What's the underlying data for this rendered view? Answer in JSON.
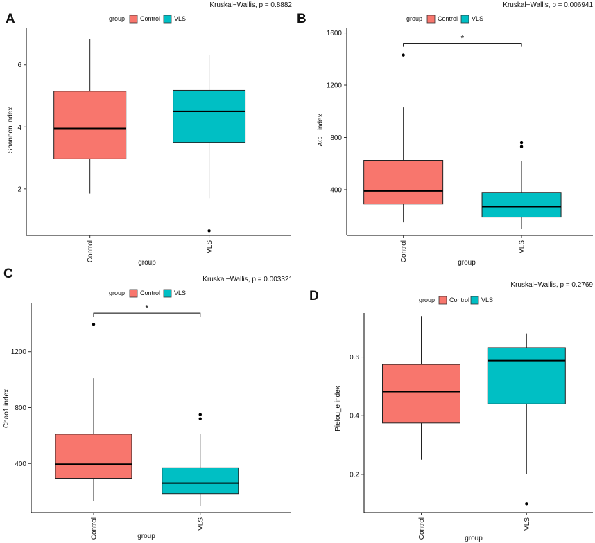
{
  "chart_data": [
    {
      "panel": "A",
      "type": "box",
      "stat_label": "Kruskal−Wallis, p = 0.8882",
      "legend": {
        "title": "group",
        "entries": [
          "Control",
          "VLS"
        ]
      },
      "xlabel": "group",
      "ylabel": "Shannon index",
      "ylim": [
        0.5,
        7.2
      ],
      "yticks": [
        2,
        4,
        6
      ],
      "categories": [
        "Control",
        "VLS"
      ],
      "boxes": [
        {
          "group": "Control",
          "min": 1.85,
          "q1": 2.97,
          "median": 3.95,
          "q3": 5.15,
          "max": 6.82,
          "outliers": []
        },
        {
          "group": "VLS",
          "min": 1.7,
          "q1": 3.5,
          "median": 4.5,
          "q3": 5.18,
          "max": 6.32,
          "outliers": [
            0.65
          ]
        }
      ],
      "significance": null
    },
    {
      "panel": "B",
      "type": "box",
      "stat_label": "Kruskal−Wallis, p = 0.006941",
      "legend": {
        "title": "group",
        "entries": [
          "Control",
          "VLS"
        ]
      },
      "xlabel": "group",
      "ylabel": "ACE index",
      "ylim": [
        50,
        1640
      ],
      "yticks": [
        400,
        800,
        1200,
        1600
      ],
      "categories": [
        "Control",
        "VLS"
      ],
      "boxes": [
        {
          "group": "Control",
          "min": 150,
          "q1": 290,
          "median": 390,
          "q3": 625,
          "max": 1030,
          "outliers": [
            1430
          ]
        },
        {
          "group": "VLS",
          "min": 100,
          "q1": 190,
          "median": 270,
          "q3": 380,
          "max": 620,
          "outliers": [
            730,
            760
          ]
        }
      ],
      "significance": {
        "label": "*",
        "y": 1520
      }
    },
    {
      "panel": "C",
      "type": "box",
      "stat_label": "Kruskal−Wallis, p = 0.003321",
      "legend": {
        "title": "group",
        "entries": [
          "Control",
          "VLS"
        ]
      },
      "xlabel": "group",
      "ylabel": "Chao1 index",
      "ylim": [
        50,
        1550
      ],
      "yticks": [
        400,
        800,
        1200
      ],
      "categories": [
        "Control",
        "VLS"
      ],
      "boxes": [
        {
          "group": "Control",
          "min": 130,
          "q1": 295,
          "median": 395,
          "q3": 610,
          "max": 1010,
          "outliers": [
            1395
          ]
        },
        {
          "group": "VLS",
          "min": 95,
          "q1": 185,
          "median": 260,
          "q3": 370,
          "max": 610,
          "outliers": [
            720,
            750
          ]
        }
      ],
      "significance": {
        "label": "*",
        "y": 1475
      }
    },
    {
      "panel": "D",
      "type": "box",
      "stat_label": "Kruskal−Wallis, p = 0.2769",
      "legend": {
        "title": "group",
        "entries": [
          "Control",
          "VLS"
        ]
      },
      "xlabel": "group",
      "ylabel": "Pielou_e index",
      "ylim": [
        0.07,
        0.75
      ],
      "yticks": [
        0.2,
        0.4,
        0.6
      ],
      "categories": [
        "Control",
        "VLS"
      ],
      "boxes": [
        {
          "group": "Control",
          "min": 0.25,
          "q1": 0.375,
          "median": 0.482,
          "q3": 0.575,
          "max": 0.74,
          "outliers": []
        },
        {
          "group": "VLS",
          "min": 0.2,
          "q1": 0.44,
          "median": 0.588,
          "q3": 0.632,
          "max": 0.68,
          "outliers": [
            0.1
          ]
        }
      ],
      "significance": null
    }
  ],
  "colors": {
    "Control": "#F8766D",
    "VLS": "#00BFC4"
  }
}
